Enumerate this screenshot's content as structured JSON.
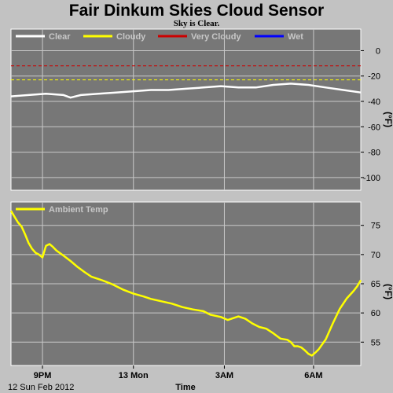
{
  "title": "Fair Dinkum Skies Cloud Sensor",
  "status": "Sky is Clear.",
  "colors": {
    "page_bg": "#c2c2c2",
    "plot_bg": "#777777",
    "grid": "#c8c8c8",
    "clear": "#ffffff",
    "cloudy": "#ffff00",
    "very_cloudy": "#cc0000",
    "wet": "#0000ff",
    "ambient": "#ffff00"
  },
  "chart_data": [
    {
      "type": "line",
      "id": "sky",
      "unit": "(°F)",
      "ylim": [
        -110,
        17
      ],
      "yticks": [
        "0",
        "-20",
        "-40",
        "-60",
        "-80",
        "-100"
      ],
      "ytick_values": [
        0,
        -20,
        -40,
        -60,
        -80,
        -100
      ],
      "grid": true,
      "legend_placement": "top-left",
      "legend": [
        "Clear",
        "Cloudy",
        "Very Cloudy",
        "Wet"
      ],
      "thresholds": [
        {
          "name": "Very Cloudy",
          "value": -12,
          "color": "#cc0000"
        },
        {
          "name": "Cloudy",
          "value": -23,
          "color": "#ffff00"
        }
      ],
      "series": [
        {
          "name": "Clear",
          "color": "#ffffff",
          "x": [
            0,
            0.05,
            0.1,
            0.15,
            0.17,
            0.2,
            0.25,
            0.3,
            0.35,
            0.4,
            0.45,
            0.5,
            0.55,
            0.6,
            0.65,
            0.7,
            0.75,
            0.8,
            0.85,
            0.9,
            0.95,
            1
          ],
          "y": [
            -36,
            -35,
            -34,
            -35,
            -37,
            -35,
            -34,
            -33,
            -32,
            -31,
            -31,
            -30,
            -29,
            -28,
            -29,
            -29,
            -27,
            -26,
            -27,
            -29,
            -31,
            -33
          ]
        }
      ]
    },
    {
      "type": "line",
      "id": "ambient",
      "unit": "(°F)",
      "ylim": [
        51,
        79
      ],
      "yticks": [
        "75",
        "70",
        "65",
        "60",
        "55"
      ],
      "ytick_values": [
        75,
        70,
        65,
        60,
        55
      ],
      "grid": true,
      "legend_placement": "top-left",
      "xlabel": "Time",
      "date_label": "12 Sun Feb 2012",
      "xticks": [
        "9PM",
        "13 Mon",
        "3AM",
        "6AM"
      ],
      "xtick_values": [
        0.09,
        0.35,
        0.61,
        0.865
      ],
      "series": [
        {
          "name": "Ambient Temp",
          "color": "#ffff00",
          "x": [
            0,
            0.01,
            0.02,
            0.03,
            0.04,
            0.05,
            0.06,
            0.07,
            0.08,
            0.09,
            0.1,
            0.11,
            0.12,
            0.13,
            0.15,
            0.17,
            0.19,
            0.21,
            0.23,
            0.26,
            0.29,
            0.32,
            0.35,
            0.38,
            0.4,
            0.43,
            0.46,
            0.49,
            0.52,
            0.55,
            0.57,
            0.6,
            0.62,
            0.64,
            0.65,
            0.67,
            0.69,
            0.71,
            0.73,
            0.75,
            0.77,
            0.79,
            0.8,
            0.81,
            0.82,
            0.83,
            0.84,
            0.85,
            0.86,
            0.87,
            0.88,
            0.9,
            0.92,
            0.94,
            0.96,
            0.98,
            0.99,
            1
          ],
          "y": [
            77.5,
            76.5,
            75.5,
            74.8,
            73.5,
            72,
            71,
            70.3,
            70,
            69.5,
            71.5,
            71.8,
            71.3,
            70.7,
            69.8,
            68.9,
            67.9,
            67,
            66.2,
            65.6,
            64.9,
            64,
            63.3,
            62.8,
            62.4,
            62,
            61.6,
            61,
            60.6,
            60.3,
            59.7,
            59.3,
            58.8,
            59.2,
            59.4,
            59,
            58.2,
            57.6,
            57.3,
            56.5,
            55.6,
            55.4,
            55,
            54.3,
            54.3,
            54.1,
            53.6,
            53,
            52.7,
            53.2,
            53.8,
            55.5,
            58.2,
            60.7,
            62.5,
            63.8,
            64.6,
            65.6
          ]
        }
      ]
    }
  ]
}
